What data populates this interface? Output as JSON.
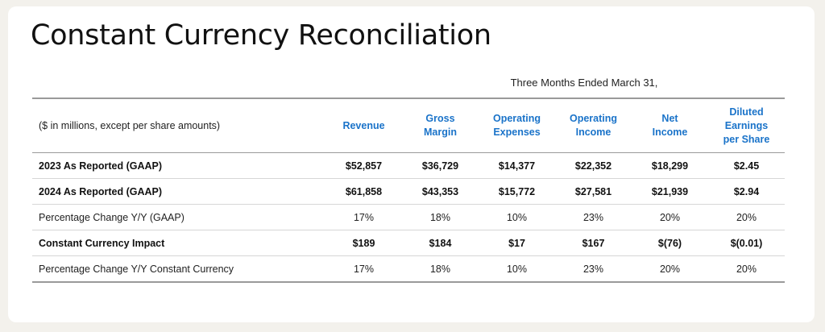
{
  "title": "Constant Currency Reconciliation",
  "period_label": "Three Months Ended March 31,",
  "table": {
    "unit_note": "($ in millions, except per share amounts)",
    "columns": [
      "Revenue",
      "Gross Margin",
      "Operating Expenses",
      "Operating Income",
      "Net Income",
      "Diluted Earnings per Share"
    ],
    "rows": [
      {
        "label": "2023 As Reported (GAAP)",
        "bold": true,
        "values": [
          "$52,857",
          "$36,729",
          "$14,377",
          "$22,352",
          "$18,299",
          "$2.45"
        ]
      },
      {
        "label": "2024 As Reported (GAAP)",
        "bold": true,
        "values": [
          "$61,858",
          "$43,353",
          "$15,772",
          "$27,581",
          "$21,939",
          "$2.94"
        ]
      },
      {
        "label": "Percentage Change Y/Y (GAAP)",
        "bold": false,
        "values": [
          "17%",
          "18%",
          "10%",
          "23%",
          "20%",
          "20%"
        ]
      },
      {
        "label": "Constant Currency Impact",
        "bold": true,
        "values": [
          "$189",
          "$184",
          "$17",
          "$167",
          "$(76)",
          "$(0.01)"
        ]
      },
      {
        "label": "Percentage Change Y/Y Constant Currency",
        "bold": false,
        "values": [
          "17%",
          "18%",
          "10%",
          "23%",
          "20%",
          "20%"
        ]
      }
    ]
  },
  "colors": {
    "header_blue": "#1a73c9",
    "background": "#f3f1ec",
    "card": "#ffffff"
  }
}
